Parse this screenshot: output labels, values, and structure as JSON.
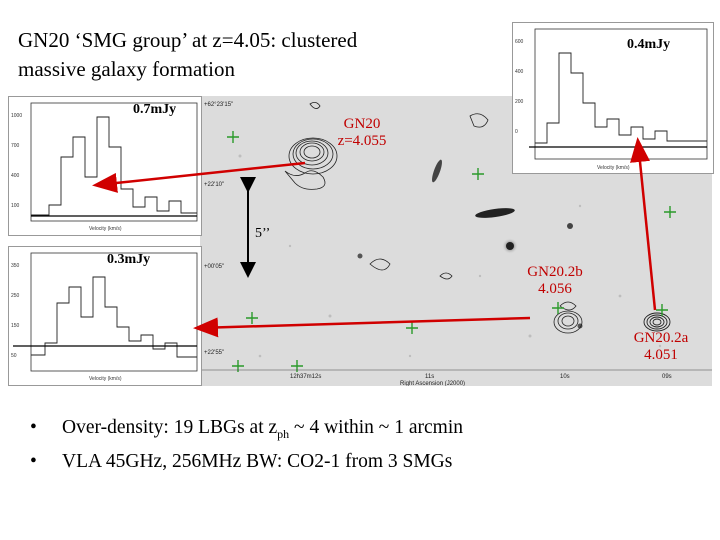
{
  "title": {
    "line1": "GN20 ‘SMG group’ at z=4.05:  clustered",
    "line2": "massive galaxy formation"
  },
  "spectra": {
    "top_left_flux": "0.7mJy",
    "bottom_left_flux": "0.3mJy",
    "top_right_flux": "0.4mJy"
  },
  "sources": {
    "gn20": {
      "name": "GN20",
      "z": "z=4.055"
    },
    "gn20_2b": {
      "name": "GN20.2b",
      "z": "4.056"
    },
    "gn20_2a": {
      "name": "GN20.2a",
      "z": "4.051"
    }
  },
  "scale_bar": "5’’",
  "bullets": [
    {
      "pre": "Over-density: 19 LBGs at z",
      "sub": "ph",
      "post": " ~ 4 within ~ 1 arcmin"
    },
    {
      "pre": "VLA 45GHz, 256MHz BW:  CO2-1 from 3 SMGs",
      "sub": "",
      "post": ""
    }
  ],
  "colors": {
    "arrow": "#d00000",
    "cross": "#2a9a2a",
    "label_red": "#c00000"
  }
}
